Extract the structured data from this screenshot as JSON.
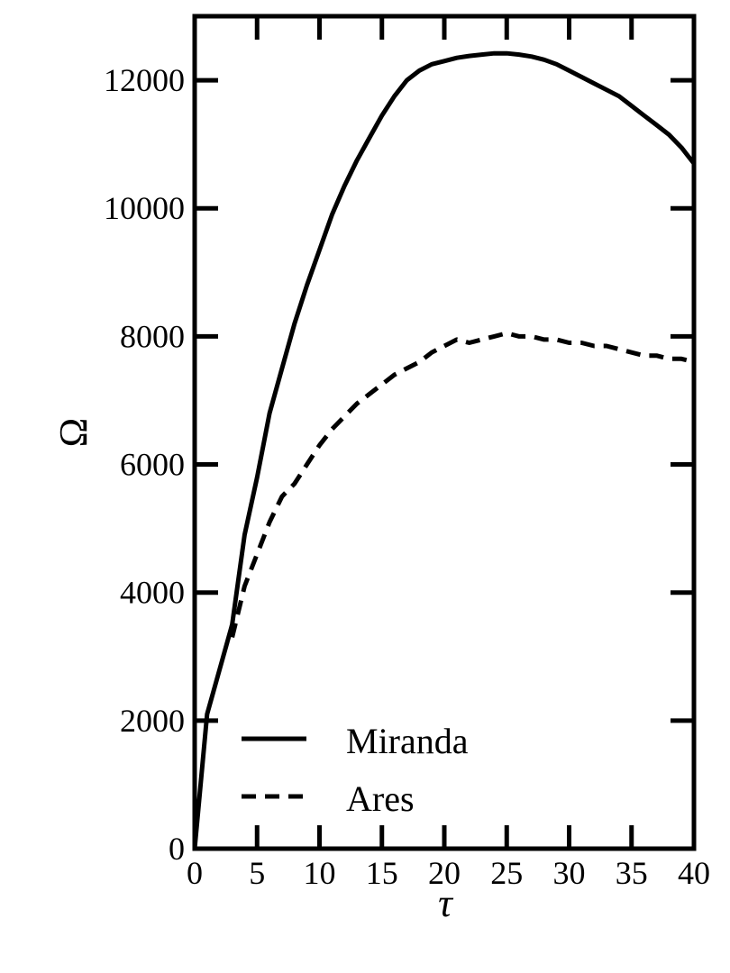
{
  "chart_data": {
    "type": "line",
    "title": "",
    "xlabel": "τ",
    "ylabel": "Ω",
    "xlim": [
      0,
      40
    ],
    "ylim": [
      0,
      13000
    ],
    "xticks": [
      0,
      5,
      10,
      15,
      20,
      25,
      30,
      35,
      40
    ],
    "yticks": [
      0,
      2000,
      4000,
      6000,
      8000,
      10000,
      12000
    ],
    "xtick_labels": [
      "0",
      "5",
      "10",
      "15",
      "20",
      "25",
      "30",
      "35",
      "40"
    ],
    "ytick_labels": [
      "0",
      "2000",
      "4000",
      "6000",
      "8000",
      "10000",
      "12000"
    ],
    "grid": false,
    "legend_position": "bottom-left",
    "series": [
      {
        "name": "Miranda",
        "style": "solid",
        "color": "#000000",
        "x": [
          0,
          1,
          2,
          3,
          4,
          5,
          6,
          7,
          8,
          9,
          10,
          11,
          12,
          13,
          14,
          15,
          16,
          17,
          18,
          19,
          20,
          21,
          22,
          23,
          24,
          25,
          26,
          27,
          28,
          29,
          30,
          31,
          32,
          33,
          34,
          35,
          36,
          37,
          38,
          39,
          40
        ],
        "y": [
          0,
          2100,
          2800,
          3500,
          4900,
          5800,
          6800,
          7500,
          8200,
          8800,
          9350,
          9900,
          10350,
          10750,
          11100,
          11450,
          11750,
          12000,
          12150,
          12250,
          12300,
          12350,
          12380,
          12400,
          12420,
          12420,
          12400,
          12370,
          12320,
          12250,
          12150,
          12050,
          11950,
          11850,
          11750,
          11600,
          11450,
          11300,
          11150,
          10950,
          10700
        ]
      },
      {
        "name": "Ares",
        "style": "dashed",
        "color": "#000000",
        "x": [
          3,
          4,
          5,
          6,
          7,
          8,
          9,
          10,
          11,
          12,
          13,
          14,
          15,
          16,
          17,
          18,
          19,
          20,
          21,
          22,
          23,
          24,
          25,
          26,
          27,
          28,
          29,
          30,
          31,
          32,
          33,
          34,
          35,
          36,
          37,
          38,
          39,
          40
        ],
        "y": [
          3300,
          4100,
          4600,
          5100,
          5500,
          5700,
          6000,
          6300,
          6550,
          6750,
          6950,
          7100,
          7250,
          7400,
          7500,
          7600,
          7750,
          7850,
          7950,
          7900,
          7950,
          8000,
          8050,
          8000,
          8000,
          7950,
          7950,
          7900,
          7900,
          7850,
          7850,
          7800,
          7750,
          7700,
          7700,
          7650,
          7650,
          7600
        ]
      }
    ]
  }
}
